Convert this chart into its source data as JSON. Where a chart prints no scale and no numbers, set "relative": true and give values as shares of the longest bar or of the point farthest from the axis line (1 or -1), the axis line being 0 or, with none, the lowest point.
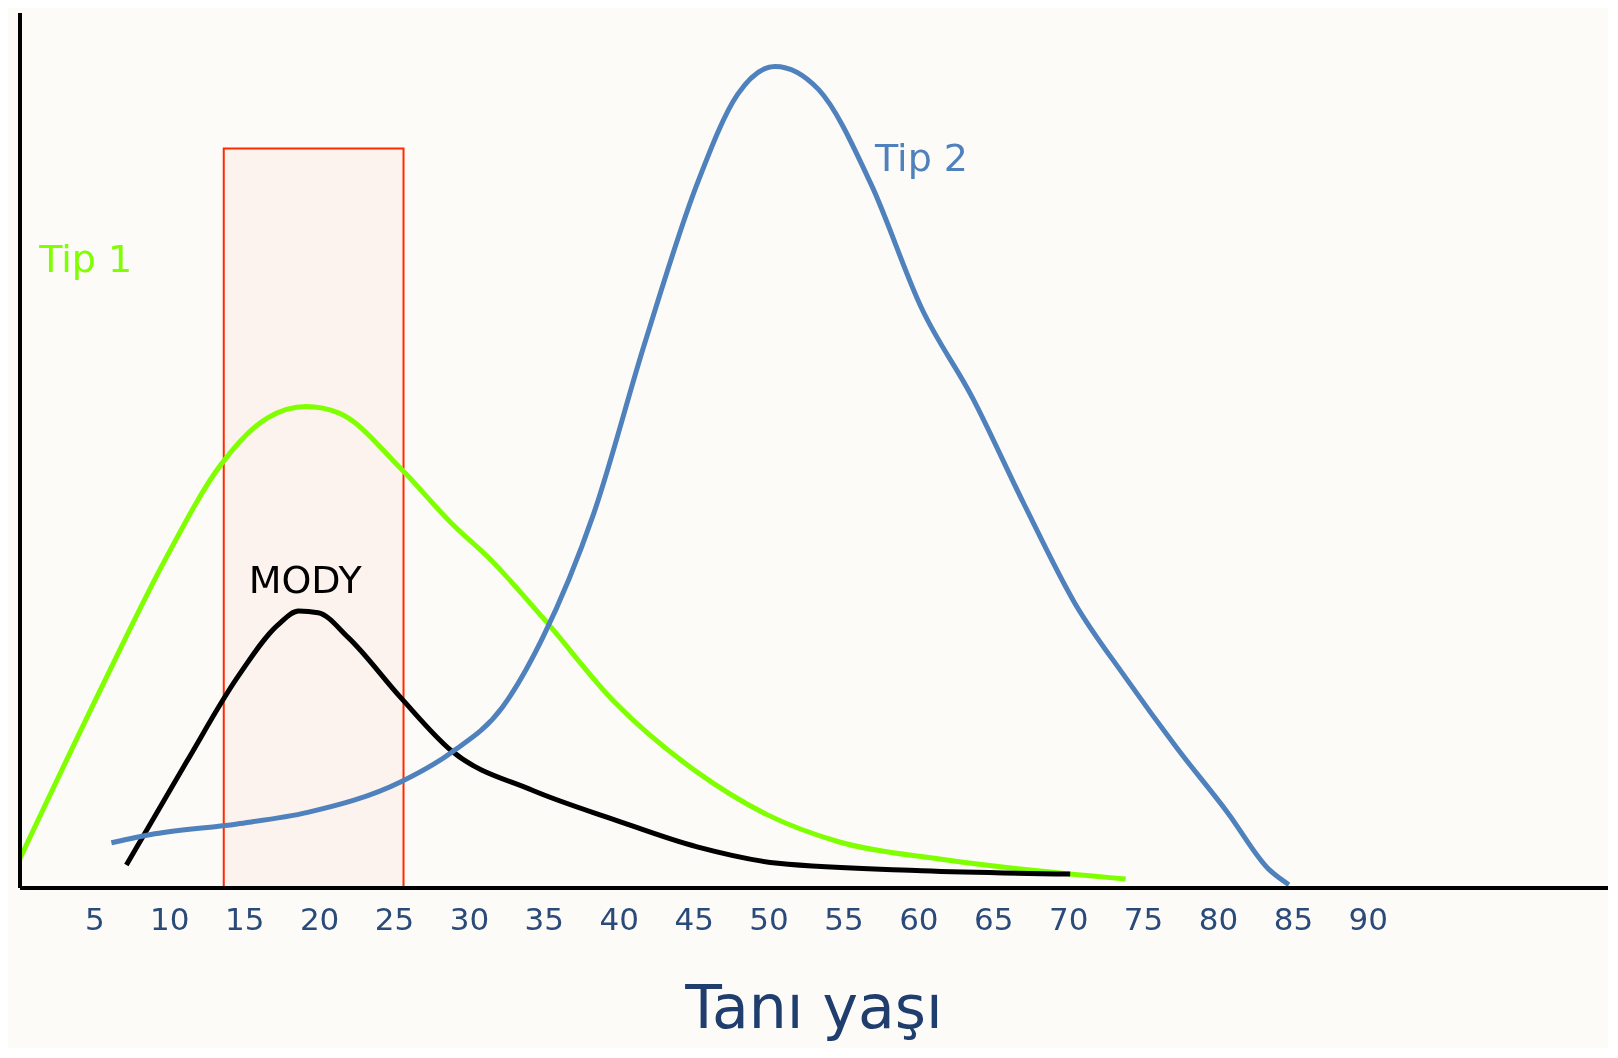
{
  "chart_data": {
    "type": "line",
    "relative": true,
    "xlabel": "Tanı yaşı",
    "xlim": [
      0,
      106
    ],
    "xticks": [
      5,
      10,
      15,
      20,
      25,
      30,
      35,
      40,
      45,
      50,
      55,
      60,
      65,
      70,
      75,
      80,
      85,
      90
    ],
    "legend": false,
    "grid": false,
    "marker": "none",
    "line_style": "solid",
    "bands": [
      {
        "axis": "x",
        "from": 13.6,
        "to": 25.6,
        "color": "#ff2a00"
      }
    ],
    "series": [
      {
        "name": "Tip 1",
        "color": "#7fff00",
        "x": [
          0,
          5.6,
          9.7,
          13.4,
          16.5,
          19.1,
          21.3,
          25.4,
          28.8,
          31.5,
          34.9,
          39.7,
          45.2,
          49.9,
          54.7,
          61.5,
          73.8
        ],
        "values": [
          0.036,
          0.25,
          0.4,
          0.515,
          0.572,
          0.586,
          0.578,
          0.511,
          0.444,
          0.398,
          0.329,
          0.226,
          0.141,
          0.089,
          0.056,
          0.035,
          0.011
        ]
      },
      {
        "name": "MODY",
        "color": "#000000",
        "x": [
          7.1,
          11.1,
          14.5,
          17.2,
          18.6,
          19.9,
          21.9,
          25.4,
          28.8,
          34.2,
          39.7,
          45.2,
          50.6,
          60.2,
          70.1
        ],
        "values": [
          0.028,
          0.153,
          0.256,
          0.32,
          0.337,
          0.335,
          0.305,
          0.232,
          0.167,
          0.119,
          0.083,
          0.05,
          0.03,
          0.021,
          0.017
        ]
      },
      {
        "name": "Tip 2",
        "color": "#4f81bd",
        "x": [
          6.1,
          9,
          14.5,
          19.2,
          25.4,
          28.8,
          32.2,
          34.9,
          38.3,
          41.7,
          45.2,
          47.9,
          50.4,
          53.3,
          56.8,
          60.2,
          63.6,
          67,
          70.4,
          73.8,
          77.2,
          80.6,
          83.4,
          84.7
        ],
        "values": [
          0.055,
          0.066,
          0.078,
          0.092,
          0.129,
          0.165,
          0.22,
          0.305,
          0.456,
          0.663,
          0.857,
          0.966,
          1,
          0.972,
          0.857,
          0.705,
          0.596,
          0.468,
          0.347,
          0.256,
          0.171,
          0.092,
          0.022,
          0.004
        ]
      }
    ]
  }
}
